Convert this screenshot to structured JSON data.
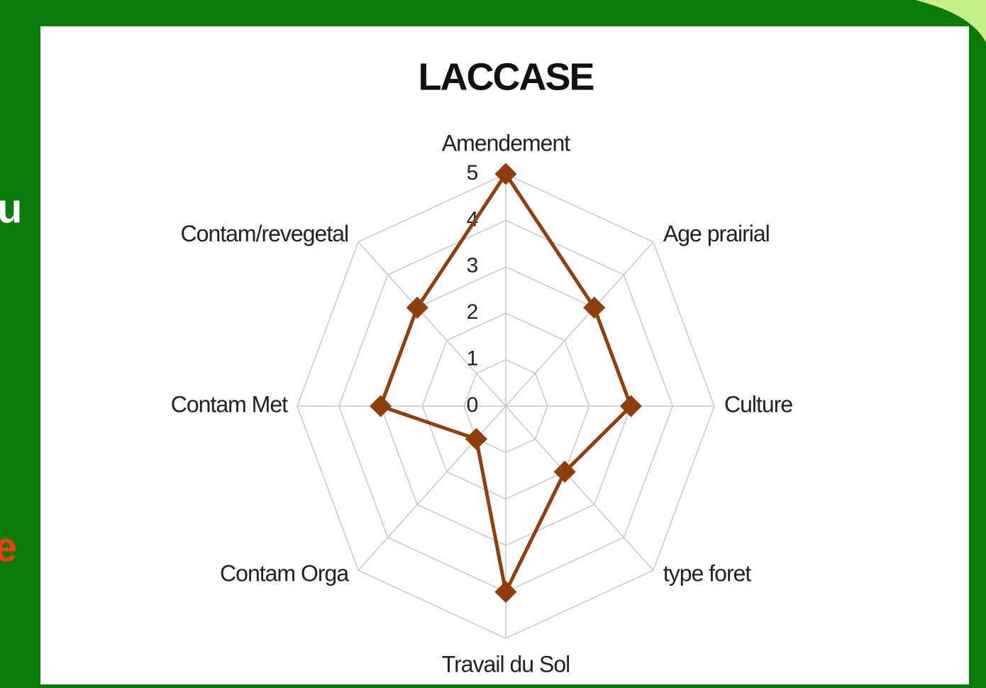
{
  "side_text": [
    "u",
    "e"
  ],
  "chart_data": {
    "type": "radar",
    "title": "LACCASE",
    "categories": [
      "Amendement",
      "Age prairial",
      "Culture",
      "type foret",
      "Travail du Sol",
      "Contam Orga",
      "Contam Met",
      "Contam/revegetal"
    ],
    "values": [
      5,
      3,
      3,
      2,
      4,
      1,
      3,
      3
    ],
    "color": "#8e3f0c",
    "ylim": [
      0,
      5
    ],
    "yticks": [
      0,
      1,
      2,
      3,
      4,
      5
    ],
    "grid": true
  }
}
